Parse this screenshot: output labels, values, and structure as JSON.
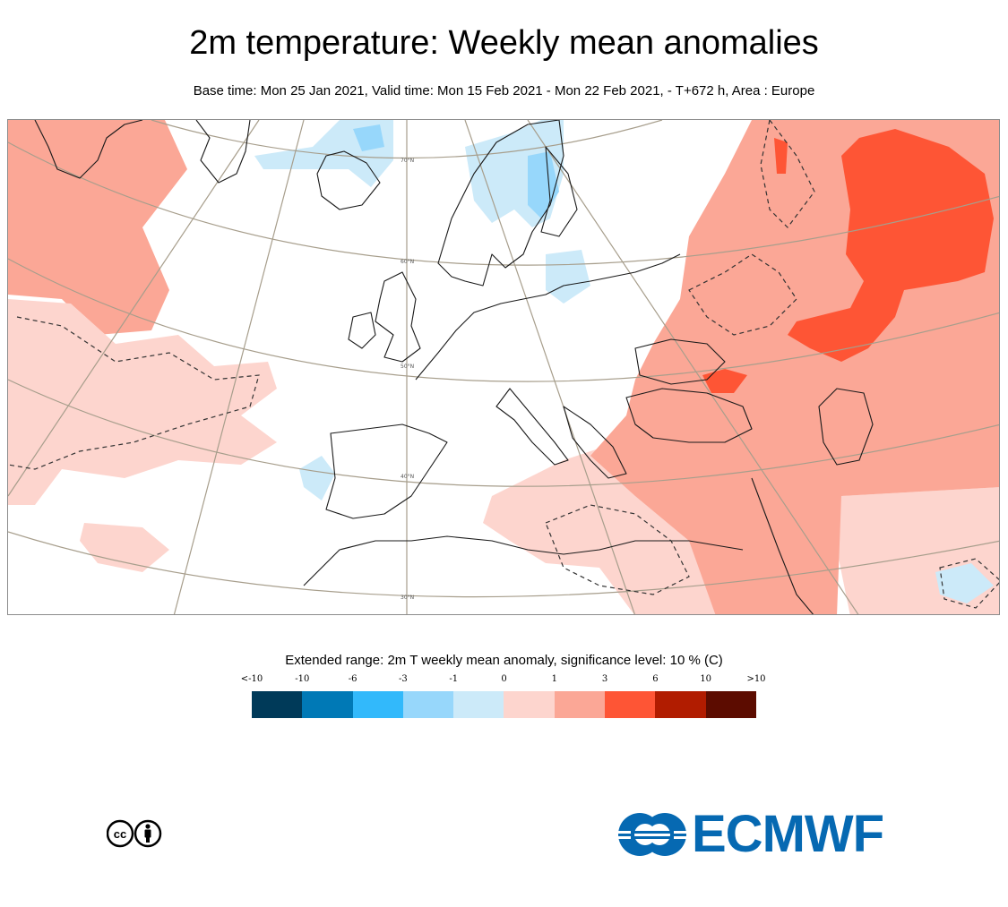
{
  "header": {
    "title": "2m temperature: Weekly mean anomalies",
    "subtitle": "Base time: Mon 25 Jan 2021, Valid time: Mon 15 Feb 2021 - Mon 22 Feb 2021, - T+672 h, Area : Europe"
  },
  "map": {
    "latitude_labels": [
      "70°N",
      "60°N",
      "50°N",
      "40°N",
      "30°N"
    ],
    "anomaly_colors": {
      "strong_warm": "#fe5535",
      "moderate_warm": "#fba796",
      "weak_warm": "#fdd5ce",
      "weak_cold": "#cceaf9",
      "moderate_cold": "#97d7fb",
      "strong_cold": "#39b9fb",
      "coastline": "#1a1a1a",
      "graticule": "#a79e8c",
      "significance_contour": "#333333"
    }
  },
  "legend": {
    "title": "Extended range: 2m T weekly mean anomaly, significance level: 10 % (C)",
    "ticks": [
      "<-10",
      "-10",
      "-6",
      "-3",
      "-1",
      "0",
      "1",
      "3",
      "6",
      "10",
      ">10"
    ],
    "colors": [
      "#003a59",
      "#0079b6",
      "#32b9fb",
      "#97d7fb",
      "#cceaf9",
      "#fdd5ce",
      "#fba796",
      "#fe5535",
      "#b11c00",
      "#5c0c00"
    ]
  },
  "logos": {
    "cc": "cc-by-license-icon",
    "ecmwf_text": "ECMWF",
    "ecmwf_color": "#0669b2"
  }
}
